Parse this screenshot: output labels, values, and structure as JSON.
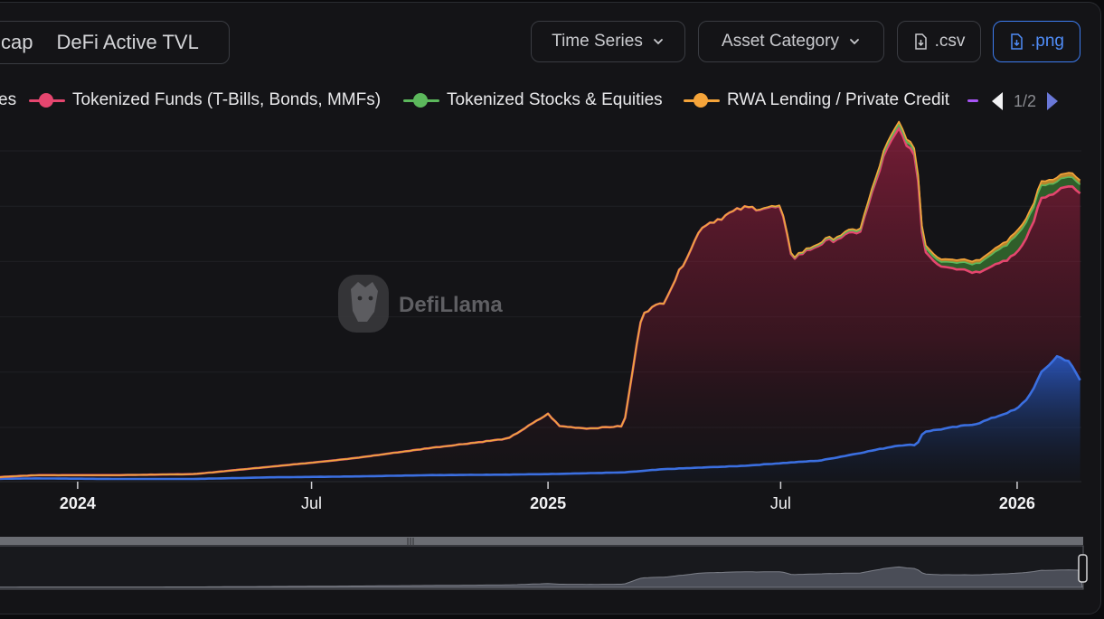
{
  "header": {
    "tabs": [
      {
        "label": "cap"
      },
      {
        "label": "DeFi Active TVL"
      }
    ],
    "buttons": {
      "time_series": "Time Series",
      "asset_category": "Asset Category",
      "csv": ".csv",
      "png": ".png"
    }
  },
  "legend": {
    "items": [
      {
        "label": "es",
        "color": "#e5466f"
      },
      {
        "label": "Tokenized Funds (T-Bills, Bonds, MMFs)",
        "color": "#e5466f"
      },
      {
        "label": "Tokenized Stocks & Equities",
        "color": "#5cb85c"
      },
      {
        "label": "RWA Lending / Private Credit",
        "color": "#f5a43a"
      }
    ],
    "overflow_color": "#a855f7",
    "page": "1/2"
  },
  "watermark": "DefiLlama",
  "colors": {
    "accent": "#3d7cf0",
    "blue_series": "#3b6fe0",
    "pink_series": "#e5466f",
    "green_series": "#2f7d32",
    "orange_series": "#f5a43a"
  },
  "chart_data": {
    "type": "area",
    "x_tick_labels": [
      {
        "label": "2024",
        "bold": true
      },
      {
        "label": "Jul",
        "bold": false
      },
      {
        "label": "2025",
        "bold": true
      },
      {
        "label": "Jul",
        "bold": false
      },
      {
        "label": "2026",
        "bold": true
      }
    ],
    "x_range": [
      "2023-10-15",
      "2026-02-20"
    ],
    "stacked": true,
    "series": [
      {
        "color": "#3b6fe0",
        "values": [
          [
            "2023-10-15",
            1.0
          ],
          [
            "2023-12-01",
            1.2
          ],
          [
            "2024-02-01",
            1.0
          ],
          [
            "2024-04-01",
            1.0
          ],
          [
            "2024-06-01",
            1.6
          ],
          [
            "2024-08-01",
            1.9
          ],
          [
            "2024-10-01",
            2.4
          ],
          [
            "2024-12-01",
            2.6
          ],
          [
            "2025-01-01",
            2.8
          ],
          [
            "2025-03-01",
            3.4
          ],
          [
            "2025-04-01",
            4.6
          ],
          [
            "2025-05-01",
            5.2
          ],
          [
            "2025-06-01",
            5.8
          ],
          [
            "2025-07-01",
            6.8
          ],
          [
            "2025-08-01",
            7.8
          ],
          [
            "2025-09-01",
            10.6
          ],
          [
            "2025-10-01",
            13.4
          ],
          [
            "2025-10-15",
            13.6
          ],
          [
            "2025-10-20",
            18.4
          ],
          [
            "2025-11-01",
            19.2
          ],
          [
            "2025-12-01",
            21.4
          ],
          [
            "2026-01-01",
            26.8
          ],
          [
            "2026-01-10",
            31.2
          ],
          [
            "2026-01-20",
            40.2
          ],
          [
            "2026-02-01",
            46.2
          ],
          [
            "2026-02-10",
            44.6
          ],
          [
            "2026-02-20",
            36.6
          ]
        ]
      },
      {
        "name": "Tokenized Funds (T-Bills, Bonds, MMFs)",
        "color": "#e5466f",
        "values": [
          [
            "2023-10-15",
            0.3
          ],
          [
            "2023-12-01",
            1.2
          ],
          [
            "2024-02-01",
            1.4
          ],
          [
            "2024-04-01",
            1.8
          ],
          [
            "2024-06-01",
            4.0
          ],
          [
            "2024-08-01",
            6.6
          ],
          [
            "2024-10-01",
            10.0
          ],
          [
            "2024-12-01",
            13.3
          ],
          [
            "2025-01-01",
            22.2
          ],
          [
            "2025-01-10",
            17.6
          ],
          [
            "2025-02-01",
            16.5
          ],
          [
            "2025-03-01",
            17.1
          ],
          [
            "2025-03-15",
            58.3
          ],
          [
            "2025-04-01",
            61.6
          ],
          [
            "2025-05-01",
            89.1
          ],
          [
            "2025-06-01",
            95.1
          ],
          [
            "2025-07-01",
            94.3
          ],
          [
            "2025-07-10",
            75.2
          ],
          [
            "2025-08-01",
            79.9
          ],
          [
            "2025-09-01",
            82.0
          ],
          [
            "2025-09-20",
            108.6
          ],
          [
            "2025-10-01",
            116.7
          ],
          [
            "2025-10-15",
            104.2
          ],
          [
            "2025-10-20",
            67.3
          ],
          [
            "2025-11-01",
            60.7
          ],
          [
            "2025-12-01",
            55.9
          ],
          [
            "2026-01-01",
            57.0
          ],
          [
            "2026-01-20",
            64.1
          ],
          [
            "2026-02-01",
            61.2
          ],
          [
            "2026-02-20",
            68.8
          ]
        ]
      },
      {
        "name": "Tokenized Stocks & Equities",
        "color": "#2f7d32",
        "values": [
          [
            "2023-10-15",
            0.0
          ],
          [
            "2025-06-01",
            0.0
          ],
          [
            "2025-09-01",
            0.6
          ],
          [
            "2025-10-01",
            1.2
          ],
          [
            "2025-11-01",
            1.6
          ],
          [
            "2025-12-01",
            3.2
          ],
          [
            "2026-01-01",
            6.4
          ],
          [
            "2026-02-01",
            3.6
          ],
          [
            "2026-02-20",
            3.2
          ]
        ]
      },
      {
        "name": "RWA Lending / Private Credit",
        "color": "#f5a43a",
        "values": [
          [
            "2023-10-15",
            0.0
          ],
          [
            "2025-06-01",
            0.0
          ],
          [
            "2025-09-01",
            0.6
          ],
          [
            "2025-10-01",
            1.2
          ],
          [
            "2025-11-01",
            1.0
          ],
          [
            "2025-12-01",
            1.2
          ],
          [
            "2026-01-01",
            1.6
          ],
          [
            "2026-02-20",
            1.6
          ]
        ]
      }
    ],
    "grid": true,
    "legend_position": "top",
    "range_selector": true
  }
}
